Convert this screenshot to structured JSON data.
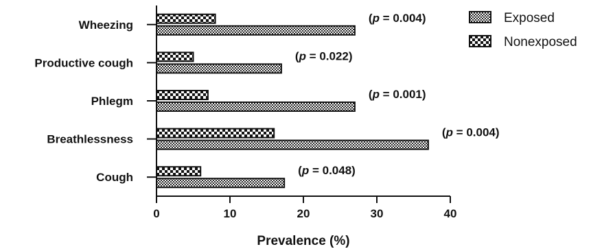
{
  "chart_data": {
    "type": "bar",
    "orientation": "horizontal",
    "categories": [
      "Wheezing",
      "Productive cough",
      "Phlegm",
      "Breathlessness",
      "Cough"
    ],
    "series": [
      {
        "name": "Exposed",
        "values": [
          27,
          17,
          27,
          37,
          17.4
        ],
        "pattern": "dense-checker"
      },
      {
        "name": "Nonexposed",
        "values": [
          8,
          5,
          7,
          16,
          6
        ],
        "pattern": "large-checker"
      }
    ],
    "p_labels": [
      {
        "prefix": "(",
        "var": "p",
        "suffix": " = 0.004)"
      },
      {
        "prefix": "(",
        "var": "p",
        "suffix": " = 0.022)"
      },
      {
        "prefix": "(",
        "var": "p",
        "suffix": " = 0.001)"
      },
      {
        "prefix": "(",
        "var": "p",
        "suffix": " = 0.004)"
      },
      {
        "prefix": "(",
        "var": "p",
        "suffix": " = 0.048)"
      }
    ],
    "xlabel": "Prevalence (%)",
    "ylabel": "",
    "xlim": [
      0,
      40
    ],
    "xticks": [
      0,
      10,
      20,
      30,
      40
    ],
    "grid": false,
    "legend_position": "top-right",
    "colors": {
      "ink": "#111111",
      "background": "#ffffff"
    }
  }
}
